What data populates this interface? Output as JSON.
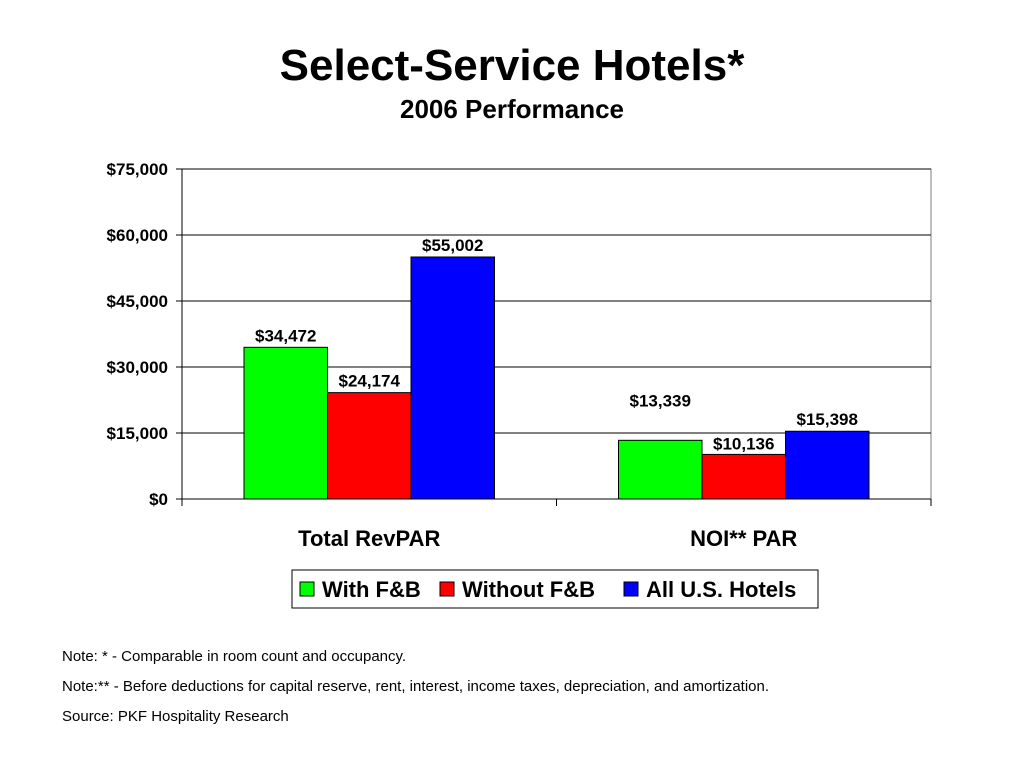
{
  "chart_data": {
    "type": "bar",
    "title": "Select-Service Hotels*",
    "subtitle": "2006 Performance",
    "categories": [
      "Total RevPAR",
      "NOI** PAR"
    ],
    "series": [
      {
        "name": "With F&B",
        "values": [
          34472,
          13339
        ],
        "labels": [
          "$34,472",
          "$13,339"
        ],
        "color": "#00ff00"
      },
      {
        "name": "Without F&B",
        "values": [
          24174,
          10136
        ],
        "labels": [
          "$24,174",
          "$10,136"
        ],
        "color": "#ff0000"
      },
      {
        "name": "All U.S. Hotels",
        "values": [
          55002,
          15398
        ],
        "labels": [
          "$55,002",
          "$15,398"
        ],
        "color": "#0000ff"
      }
    ],
    "ylim": [
      0,
      75000
    ],
    "yticks": [
      0,
      15000,
      30000,
      45000,
      60000,
      75000
    ],
    "ytick_labels": [
      "$0",
      "$15,000",
      "$30,000",
      "$45,000",
      "$60,000",
      "$75,000"
    ],
    "grid": true,
    "legend_position": "bottom-center"
  },
  "notes": [
    "Note: * - Comparable in room count and occupancy.",
    "Note:** - Before deductions for capital reserve, rent, interest, income taxes, depreciation, and amortization.",
    "Source: PKF Hospitality Research"
  ]
}
